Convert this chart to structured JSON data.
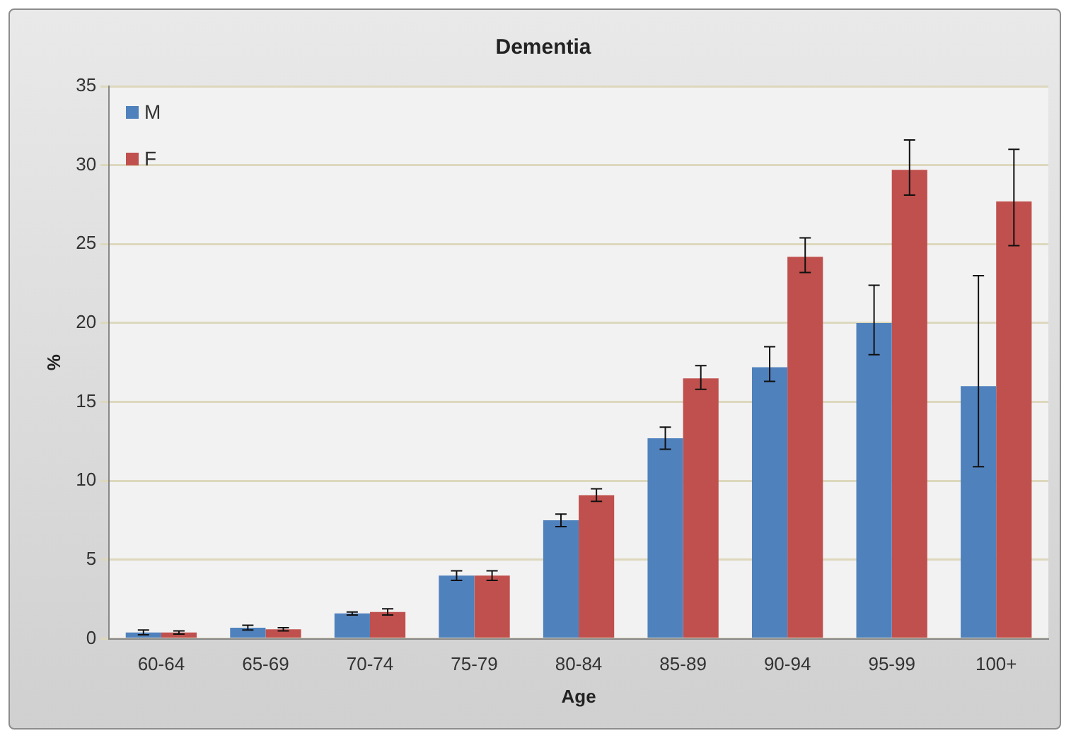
{
  "chart_data": {
    "type": "bar",
    "title": "Dementia",
    "xlabel": "Age",
    "ylabel": "%",
    "categories": [
      "60-64",
      "65-69",
      "70-74",
      "75-79",
      "80-84",
      "85-89",
      "90-94",
      "95-99",
      "100+"
    ],
    "series": [
      {
        "name": "M",
        "color": "#4f81bd",
        "values": [
          0.4,
          0.7,
          1.6,
          4.0,
          7.5,
          12.7,
          17.2,
          20.0,
          16.0
        ],
        "errors": [
          0.15,
          0.15,
          0.1,
          0.3,
          0.4,
          [
            12.0,
            13.4
          ],
          [
            16.3,
            18.5
          ],
          [
            18.0,
            22.4
          ],
          [
            10.9,
            23.0
          ]
        ]
      },
      {
        "name": "F",
        "color": "#c0504d",
        "values": [
          0.4,
          0.6,
          1.7,
          4.0,
          9.1,
          16.5,
          24.2,
          29.7,
          27.7
        ],
        "errors": [
          0.1,
          0.1,
          0.2,
          0.3,
          0.4,
          [
            15.8,
            17.3
          ],
          [
            23.2,
            25.4
          ],
          [
            28.1,
            31.6
          ],
          [
            24.9,
            31.0
          ]
        ]
      }
    ],
    "ylim": [
      0,
      35
    ],
    "yticks": [
      0,
      5,
      10,
      15,
      20,
      25,
      30,
      35
    ],
    "grid": "y",
    "legend": "top left"
  }
}
